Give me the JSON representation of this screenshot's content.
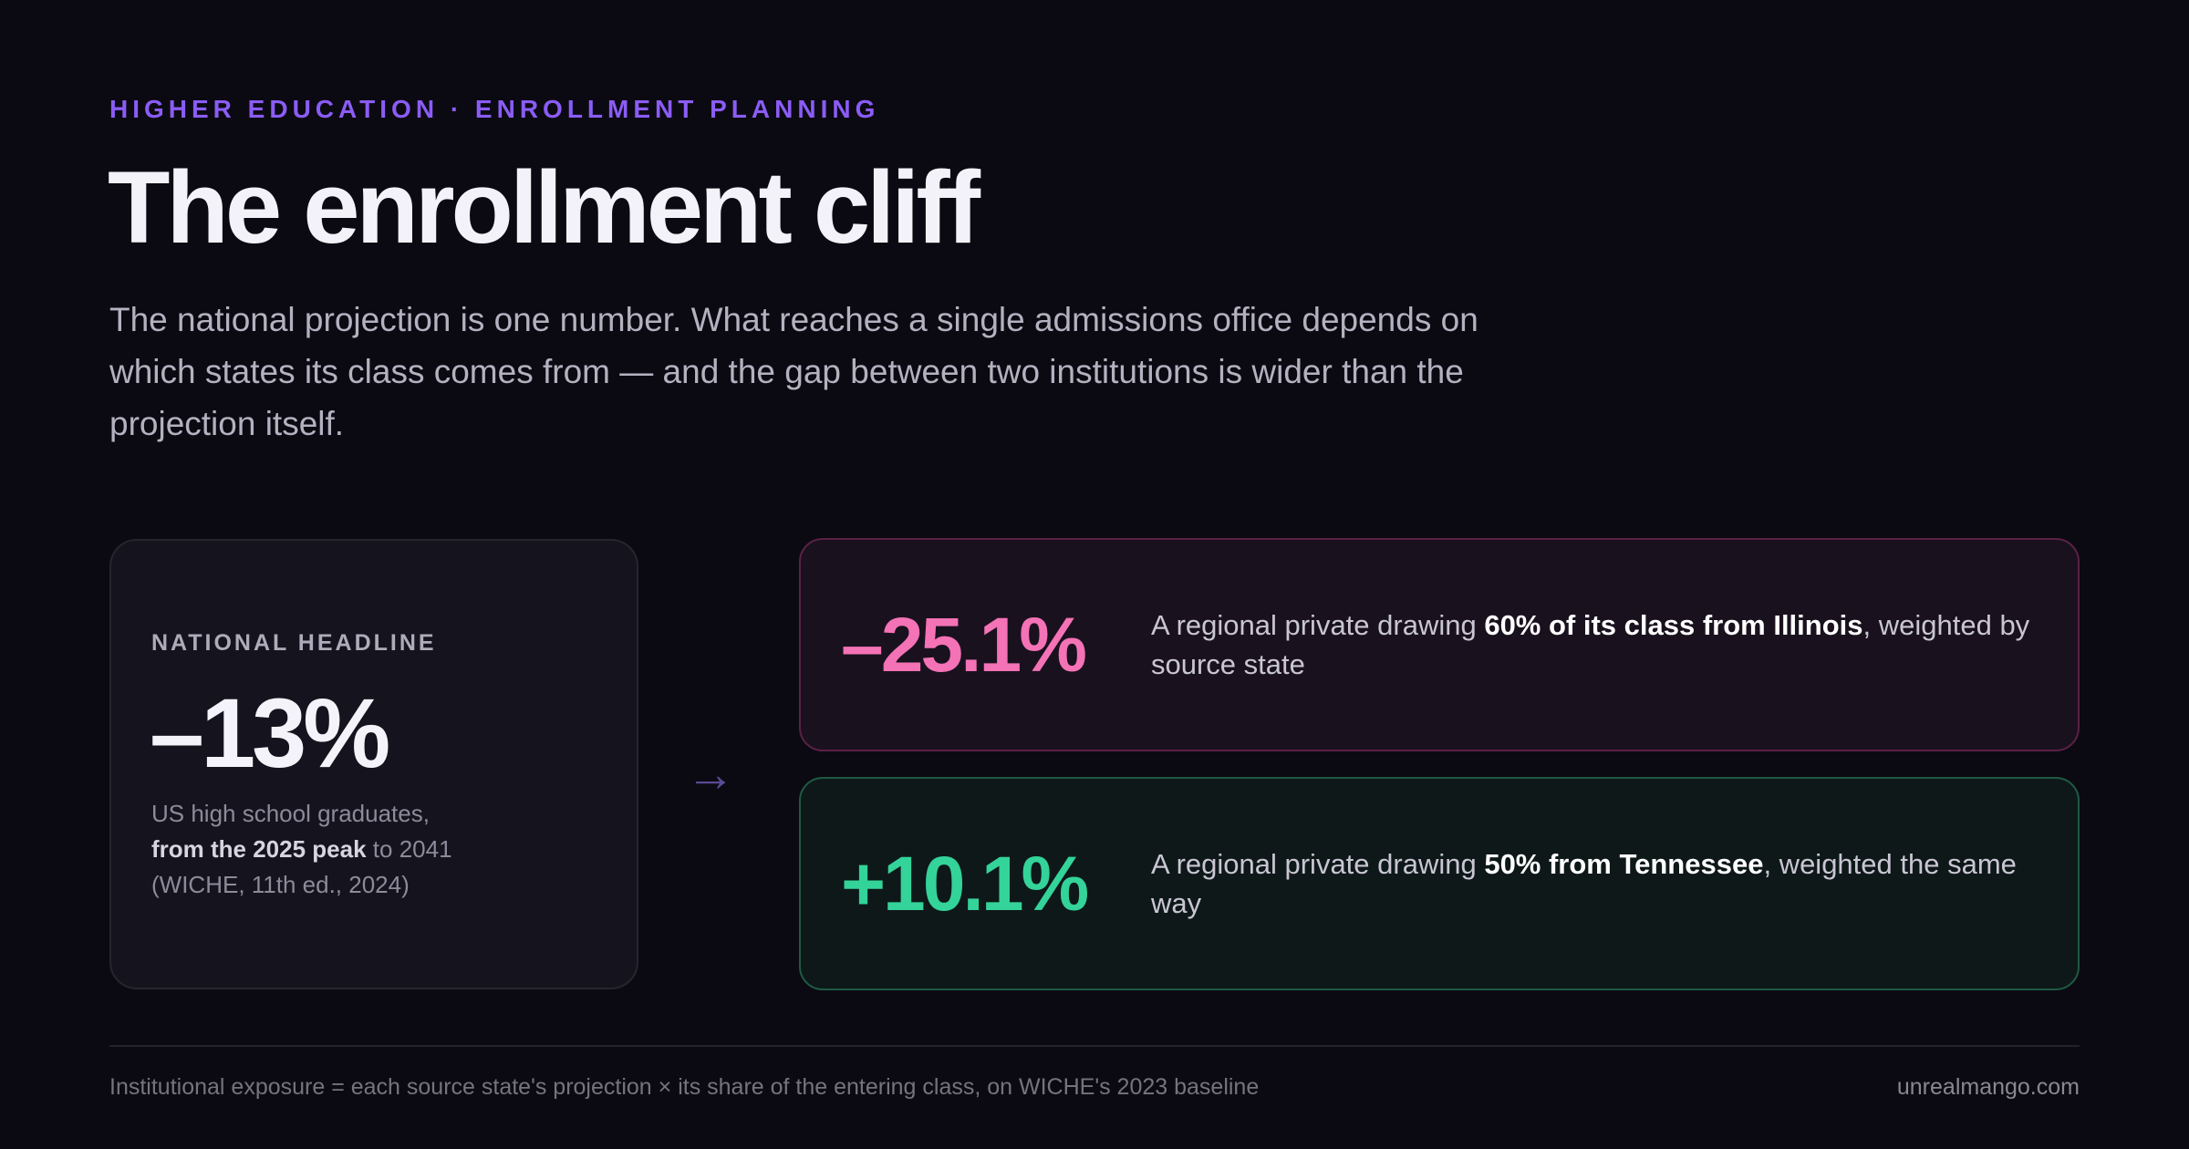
{
  "header": {
    "eyebrow": "HIGHER EDUCATION · ENROLLMENT PLANNING",
    "title": "The enrollment cliff",
    "subtitle": "The national projection is one number. What reaches a single admissions office depends on which states its class comes from — and the gap between two institutions is wider than the projection itself."
  },
  "national": {
    "label": "NATIONAL HEADLINE",
    "value": "–13%",
    "desc_pre": "US high school graduates,",
    "desc_bold": "from the 2025 peak",
    "desc_post": " to 2041",
    "desc_source": "(WICHE, 11th ed., 2024)"
  },
  "arrow": "→",
  "scenarios": [
    {
      "value": "–25.1%",
      "desc_pre": "A regional private drawing ",
      "desc_bold": "60% of its class from Illinois",
      "desc_post": ", weighted by source state",
      "accent": "#f472b6"
    },
    {
      "value": "+10.1%",
      "desc_pre": "A regional private drawing ",
      "desc_bold": "50% from Tennessee",
      "desc_post": ", weighted the same way",
      "accent": "#34d399"
    }
  ],
  "footer": {
    "note": "Institutional exposure = each source state's projection × its share of the entering class, on WICHE's 2023 baseline",
    "site": "unrealmango.com"
  },
  "colors": {
    "background": "#0b0a12",
    "eyebrow": "#8b5cf6",
    "negative": "#f472b6",
    "positive": "#34d399"
  }
}
